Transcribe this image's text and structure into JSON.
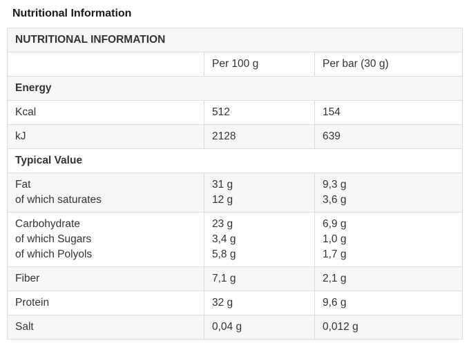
{
  "page_title": "Nutritional Information",
  "table": {
    "title": "NUTRITIONAL INFORMATION",
    "column_headers": [
      "",
      "Per 100 g",
      "Per bar (30 g)"
    ],
    "rows": [
      {
        "kind": "section",
        "id": "energy",
        "label": "Energy"
      },
      {
        "kind": "data",
        "id": "kcal",
        "labels": [
          "Kcal"
        ],
        "per_100_g": [
          "512"
        ],
        "per_bar_30_g": [
          "154"
        ]
      },
      {
        "kind": "data",
        "id": "kj",
        "labels": [
          "kJ"
        ],
        "per_100_g": [
          "2128"
        ],
        "per_bar_30_g": [
          "639"
        ]
      },
      {
        "kind": "section",
        "id": "typical-value",
        "label": "Typical Value"
      },
      {
        "kind": "data",
        "id": "fat",
        "labels": [
          "Fat",
          "of which saturates"
        ],
        "per_100_g": [
          "31 g",
          "12 g"
        ],
        "per_bar_30_g": [
          "9,3 g",
          "3,6 g"
        ]
      },
      {
        "kind": "data",
        "id": "carbohydrate",
        "labels": [
          "Carbohydrate",
          "of which Sugars",
          "of which Polyols"
        ],
        "per_100_g": [
          "23 g",
          "3,4 g",
          "5,8 g"
        ],
        "per_bar_30_g": [
          "6,9 g",
          "1,0 g",
          "1,7 g"
        ]
      },
      {
        "kind": "data",
        "id": "fiber",
        "labels": [
          "Fiber"
        ],
        "per_100_g": [
          "7,1 g"
        ],
        "per_bar_30_g": [
          "2,1 g"
        ]
      },
      {
        "kind": "data",
        "id": "protein",
        "labels": [
          "Protein"
        ],
        "per_100_g": [
          "32 g"
        ],
        "per_bar_30_g": [
          "9,6 g"
        ]
      },
      {
        "kind": "data",
        "id": "salt",
        "labels": [
          "Salt"
        ],
        "per_100_g": [
          "0,04 g"
        ],
        "per_bar_30_g": [
          "0,012 g"
        ]
      }
    ]
  }
}
